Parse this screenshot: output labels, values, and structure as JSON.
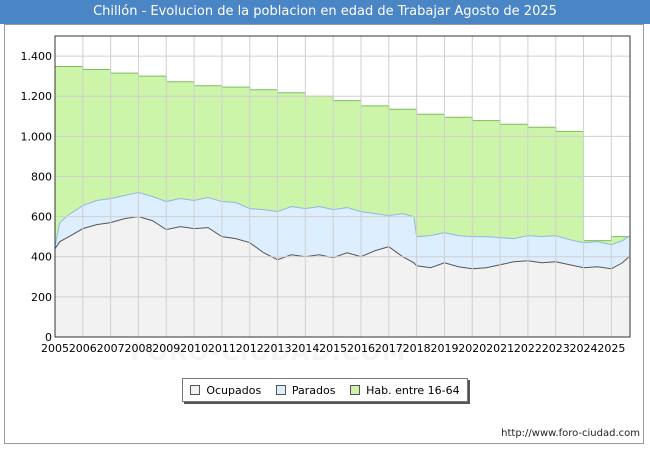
{
  "title": "Chillón - Evolucion de la poblacion en edad de Trabajar Agosto de 2025",
  "source": "http://www.foro-ciudad.com",
  "watermark": "FORO-CIUDAD.COM",
  "colors": {
    "header": "#4a86c5",
    "ocupados": "#f2f2f2",
    "ocupados_line": "#555555",
    "parados": "#ddeeff",
    "parados_line": "#8fb8e0",
    "hab": "#ccf5aa",
    "hab_line": "#7cbf5a",
    "grid": "#d0d0d0"
  },
  "legend": [
    {
      "label": "Ocupados",
      "key": "ocupados"
    },
    {
      "label": "Parados",
      "key": "parados"
    },
    {
      "label": "Hab. entre 16-64",
      "key": "hab"
    }
  ],
  "chart_data": {
    "type": "area",
    "title": "Chillón - Evolucion de la poblacion en edad de Trabajar Agosto de 2025",
    "xlim": [
      2005,
      2025.67
    ],
    "ylim": [
      0,
      1500
    ],
    "ytick_values": [
      0,
      200,
      400,
      600,
      800,
      1000,
      1200,
      1400
    ],
    "ytick_labels": [
      "0",
      "200",
      "400",
      "600",
      "800",
      "1.000",
      "1.200",
      "1.400"
    ],
    "xtick_labels": [
      "2005",
      "2006",
      "2007",
      "2008",
      "2009",
      "2010",
      "2011",
      "2012",
      "2013",
      "2014",
      "2015",
      "2016",
      "2017",
      "2018",
      "2019",
      "2020",
      "2021",
      "2022",
      "2023",
      "2024",
      "2025"
    ],
    "grid": true,
    "legend_position": "bottom",
    "series": [
      {
        "name": "Hab. entre 16-64",
        "step": true,
        "x": [
          2005,
          2006,
          2007,
          2008,
          2009,
          2010,
          2011,
          2012,
          2013,
          2014,
          2015,
          2016,
          2017,
          2018,
          2019,
          2020,
          2021,
          2022,
          2023,
          2024,
          2025
        ],
        "values": [
          1348,
          1333,
          1315,
          1300,
          1272,
          1252,
          1245,
          1232,
          1217,
          1200,
          1178,
          1152,
          1135,
          1110,
          1095,
          1078,
          1060,
          1045,
          1025,
          480,
          500
        ]
      },
      {
        "name": "Parados",
        "x": [
          2005,
          2005.17,
          2005.5,
          2006,
          2006.5,
          2007,
          2007.5,
          2008,
          2008.5,
          2009,
          2009.5,
          2010,
          2010.5,
          2011,
          2011.5,
          2012,
          2012.5,
          2013,
          2013.5,
          2014,
          2014.5,
          2015,
          2015.5,
          2016,
          2016.5,
          2017,
          2017.5,
          2017.9,
          2018,
          2018.5,
          2019,
          2019.5,
          2020,
          2020.5,
          2021,
          2021.5,
          2022,
          2022.5,
          2023,
          2023.5,
          2024,
          2024.5,
          2025,
          2025.4,
          2025.67
        ],
        "values": [
          450,
          570,
          610,
          655,
          680,
          690,
          705,
          720,
          700,
          675,
          690,
          680,
          695,
          675,
          670,
          640,
          635,
          625,
          650,
          640,
          650,
          635,
          645,
          625,
          615,
          605,
          615,
          600,
          500,
          505,
          520,
          505,
          500,
          500,
          495,
          490,
          505,
          500,
          505,
          485,
          470,
          475,
          460,
          480,
          505
        ]
      },
      {
        "name": "Ocupados",
        "x": [
          2005,
          2005.17,
          2005.5,
          2006,
          2006.5,
          2007,
          2007.5,
          2008,
          2008.5,
          2009,
          2009.5,
          2010,
          2010.5,
          2011,
          2011.5,
          2012,
          2012.5,
          2013,
          2013.5,
          2014,
          2014.5,
          2015,
          2015.5,
          2016,
          2016.5,
          2017,
          2017.5,
          2017.9,
          2018,
          2018.5,
          2019,
          2019.5,
          2020,
          2020.5,
          2021,
          2021.5,
          2022,
          2022.5,
          2023,
          2023.5,
          2024,
          2024.5,
          2025,
          2025.4,
          2025.67
        ],
        "values": [
          440,
          475,
          500,
          540,
          560,
          570,
          590,
          600,
          580,
          535,
          550,
          540,
          545,
          500,
          490,
          470,
          420,
          385,
          410,
          400,
          410,
          395,
          420,
          400,
          430,
          450,
          400,
          370,
          355,
          345,
          370,
          350,
          340,
          345,
          360,
          375,
          380,
          370,
          375,
          360,
          345,
          350,
          340,
          370,
          405
        ]
      }
    ]
  }
}
